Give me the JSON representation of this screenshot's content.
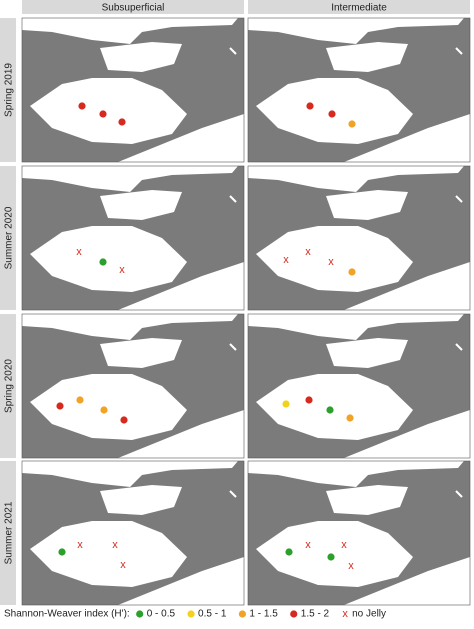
{
  "columns": [
    "Subsuperficial",
    "Intermediate"
  ],
  "rows": [
    "Spring 2019",
    "Summer 2020",
    "Spring 2020",
    "Summer 2021"
  ],
  "legend": {
    "title": "Shannon-Weaver index (H'):",
    "items": [
      {
        "label": "0 - 0.5",
        "color": "#2ca02c",
        "symbol": "circle"
      },
      {
        "label": "0.5 - 1",
        "color": "#f2d21c",
        "symbol": "circle"
      },
      {
        "label": "1 - 1.5",
        "color": "#f0a325",
        "symbol": "circle"
      },
      {
        "label": "1.5 - 2",
        "color": "#d62a1e",
        "symbol": "circle"
      },
      {
        "label": "no Jelly",
        "color": "#d62a1e",
        "symbol": "cross"
      }
    ]
  },
  "panels": [
    [
      [
        "1.5 - 2",
        "1.5 - 2",
        "1.5 - 2"
      ],
      [
        "1.5 - 2",
        "1.5 - 2",
        "1 - 1.5"
      ]
    ],
    [
      [
        "no Jelly",
        "0 - 0.5",
        "no Jelly"
      ],
      [
        "no Jelly",
        "no Jelly",
        "no Jelly",
        "1 - 1.5"
      ]
    ],
    [
      [
        "1.5 - 2",
        "1 - 1.5",
        "1 - 1.5",
        "1.5 - 2"
      ],
      [
        "0.5 - 1",
        "1.5 - 2",
        "0 - 0.5",
        "1 - 1.5"
      ]
    ],
    [
      [
        "0 - 0.5",
        "no Jelly",
        "no Jelly",
        "no Jelly"
      ],
      [
        "0 - 0.5",
        "no Jelly",
        "0 - 0.5",
        "no Jelly",
        "no Jelly"
      ]
    ]
  ]
}
